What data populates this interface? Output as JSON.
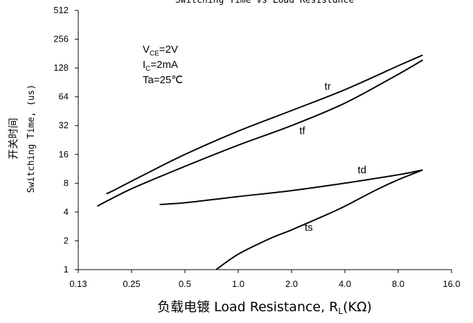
{
  "chart_data": {
    "type": "line",
    "title": "Switching Time vs Load Resistance",
    "xlabel": "负载电镀 Load Resistance, R",
    "xlabel_sub": "L",
    "xlabel_unit": "(KΩ)",
    "ylabel_cn": "开关时间",
    "ylabel": "Switching Time, (us)",
    "x_scale": "log2",
    "y_scale": "log2",
    "xlim": [
      0.125,
      16
    ],
    "ylim": [
      1,
      512
    ],
    "xticks": [
      0.125,
      0.25,
      0.5,
      1,
      2,
      4,
      8,
      16
    ],
    "xtick_labels": [
      "0.13",
      "0.25",
      "0.5",
      "1.0",
      "2.0",
      "4.0",
      "8.0",
      "16.0"
    ],
    "yticks": [
      1,
      2,
      4,
      8,
      16,
      32,
      64,
      128,
      256,
      512
    ],
    "ytick_labels": [
      "1",
      "2",
      "4",
      "8",
      "16",
      "32",
      "64",
      "128",
      "256",
      "512"
    ],
    "grid": false,
    "legend": "none",
    "conditions": [
      {
        "main": "V",
        "sub": "CE",
        "rest": "=2V"
      },
      {
        "main": "I",
        "sub": "C",
        "rest": "=2mA"
      },
      {
        "main": "Ta=25℃",
        "sub": "",
        "rest": ""
      }
    ],
    "series": [
      {
        "name": "tr",
        "x": [
          0.18,
          0.2,
          0.3,
          0.5,
          1.0,
          2.0,
          4.0,
          8.0,
          11.0
        ],
        "y": [
          6.2,
          6.8,
          10,
          16,
          28,
          46,
          76,
          135,
          175
        ]
      },
      {
        "name": "tf",
        "x": [
          0.16,
          0.25,
          0.5,
          1.0,
          2.0,
          4.0,
          8.0,
          11.0
        ],
        "y": [
          4.6,
          7,
          12,
          20,
          32,
          55,
          110,
          155
        ]
      },
      {
        "name": "td",
        "x": [
          0.36,
          0.5,
          1.0,
          2.0,
          4.0,
          8.0,
          11.0
        ],
        "y": [
          4.8,
          5.0,
          5.8,
          6.7,
          8.0,
          9.8,
          11
        ]
      },
      {
        "name": "ts",
        "x": [
          0.75,
          1.0,
          1.5,
          2.0,
          3.0,
          4.0,
          6.0,
          8.0,
          11.0
        ],
        "y": [
          1.0,
          1.45,
          2.1,
          2.6,
          3.6,
          4.6,
          6.8,
          8.7,
          11
        ]
      }
    ],
    "annotations": [
      "tr",
      "tf",
      "td",
      "ts"
    ]
  }
}
